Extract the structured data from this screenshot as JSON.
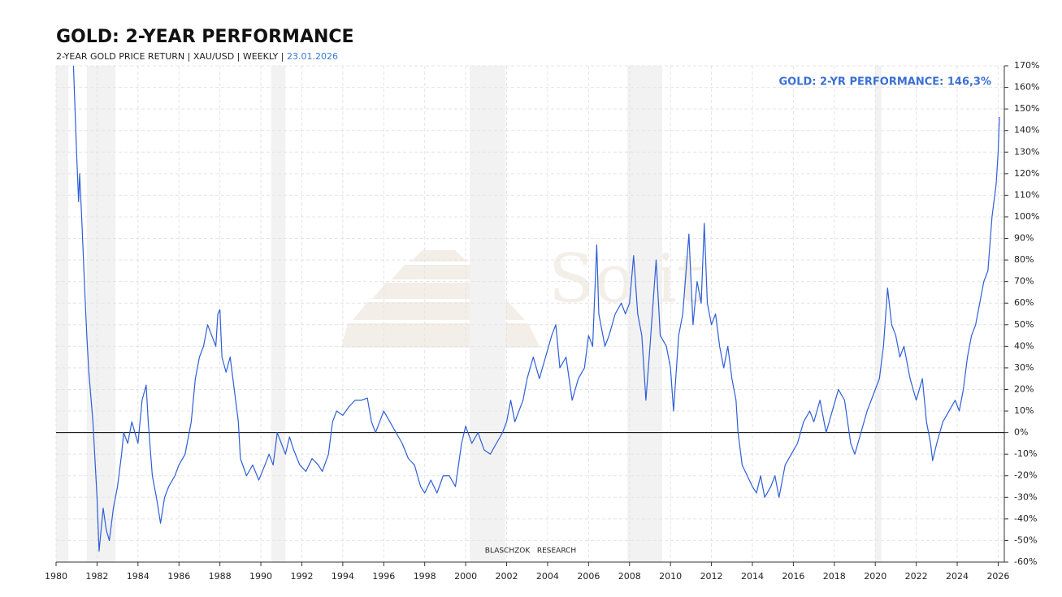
{
  "chart_data": {
    "type": "line",
    "title": "GOLD: 2-YEAR PERFORMANCE",
    "subtitle": "2-YEAR GOLD PRICE RETURN | XAU/USD | WEEKLY | ",
    "date": "23.01.2026",
    "annotation": "GOLD: 2-YR PERFORMANCE: 146,3%",
    "source": "BLASCHZOK   RESEARCH",
    "watermark": "Solit",
    "color": "#2e5fd6",
    "grid": true,
    "zero_line": true,
    "shaded_periods": [
      [
        1980.0,
        1980.6
      ],
      [
        1981.5,
        1982.9
      ],
      [
        1990.5,
        1991.2
      ],
      [
        2000.2,
        2001.95
      ],
      [
        2007.9,
        2009.6
      ],
      [
        2020.0,
        2020.3
      ]
    ],
    "xlim": [
      1980,
      2026.3
    ],
    "xticks": [
      1980,
      1982,
      1984,
      1986,
      1988,
      1990,
      1992,
      1994,
      1996,
      1998,
      2000,
      2002,
      2004,
      2006,
      2008,
      2010,
      2012,
      2014,
      2016,
      2018,
      2020,
      2022,
      2024,
      2026
    ],
    "ylim": [
      -60,
      170
    ],
    "yticks": [
      {
        "value": -60,
        "label": "-60%"
      },
      {
        "value": -50,
        "label": "-50%"
      },
      {
        "value": -40,
        "label": "-40%"
      },
      {
        "value": -30,
        "label": "-30%"
      },
      {
        "value": -20,
        "label": "-20%"
      },
      {
        "value": -10,
        "label": "-10%"
      },
      {
        "value": 0,
        "label": "0%"
      },
      {
        "value": 10,
        "label": "10%"
      },
      {
        "value": 20,
        "label": "20%"
      },
      {
        "value": 30,
        "label": "30%"
      },
      {
        "value": 40,
        "label": "40%"
      },
      {
        "value": 50,
        "label": "50%"
      },
      {
        "value": 60,
        "label": "60%"
      },
      {
        "value": 70,
        "label": "70%"
      },
      {
        "value": 80,
        "label": "80%"
      },
      {
        "value": 90,
        "label": "90%"
      },
      {
        "value": 100,
        "label": "100%"
      },
      {
        "value": 110,
        "label": "110%"
      },
      {
        "value": 120,
        "label": "120%"
      },
      {
        "value": 130,
        "label": "130%"
      },
      {
        "value": 140,
        "label": "140%"
      },
      {
        "value": 150,
        "label": "150%"
      },
      {
        "value": 160,
        "label": "160%"
      },
      {
        "value": 170,
        "label": "170%"
      }
    ],
    "x": [
      1980.85,
      1981.0,
      1981.1,
      1981.15,
      1981.25,
      1981.4,
      1981.5,
      1981.6,
      1981.8,
      1982.0,
      1982.1,
      1982.3,
      1982.45,
      1982.6,
      1982.8,
      1983.0,
      1983.2,
      1983.3,
      1983.5,
      1983.7,
      1984.0,
      1984.2,
      1984.4,
      1984.5,
      1984.7,
      1984.9,
      1985.1,
      1985.3,
      1985.5,
      1985.8,
      1986.0,
      1986.3,
      1986.6,
      1986.8,
      1987.0,
      1987.2,
      1987.4,
      1987.6,
      1987.8,
      1987.9,
      1988.0,
      1988.1,
      1988.3,
      1988.5,
      1988.7,
      1988.9,
      1989.0,
      1989.3,
      1989.6,
      1989.9,
      1990.2,
      1990.4,
      1990.6,
      1990.8,
      1991.0,
      1991.2,
      1991.4,
      1991.6,
      1991.9,
      1992.2,
      1992.5,
      1992.8,
      1993.0,
      1993.3,
      1993.5,
      1993.7,
      1994.0,
      1994.3,
      1994.6,
      1994.9,
      1995.2,
      1995.4,
      1995.6,
      1995.8,
      1996.0,
      1996.3,
      1996.6,
      1996.9,
      1997.2,
      1997.5,
      1997.8,
      1998.0,
      1998.3,
      1998.6,
      1998.9,
      1999.2,
      1999.5,
      1999.8,
      2000.0,
      2000.3,
      2000.6,
      2000.9,
      2001.2,
      2001.5,
      2001.8,
      2002.0,
      2002.2,
      2002.4,
      2002.6,
      2002.8,
      2003.0,
      2003.3,
      2003.6,
      2003.9,
      2004.2,
      2004.4,
      2004.6,
      2004.9,
      2005.2,
      2005.5,
      2005.8,
      2006.0,
      2006.2,
      2006.4,
      2006.5,
      2006.8,
      2007.0,
      2007.3,
      2007.6,
      2007.8,
      2008.0,
      2008.2,
      2008.4,
      2008.6,
      2008.8,
      2009.0,
      2009.3,
      2009.5,
      2009.8,
      2010.0,
      2010.15,
      2010.4,
      2010.6,
      2010.9,
      2011.1,
      2011.3,
      2011.5,
      2011.65,
      2011.8,
      2012.0,
      2012.2,
      2012.4,
      2012.6,
      2012.8,
      2013.0,
      2013.2,
      2013.3,
      2013.5,
      2014.0,
      2014.2,
      2014.4,
      2014.6,
      2014.9,
      2015.1,
      2015.3,
      2015.6,
      2015.9,
      2016.2,
      2016.5,
      2016.8,
      2017.0,
      2017.3,
      2017.6,
      2017.9,
      2018.2,
      2018.5,
      2018.8,
      2019.0,
      2019.3,
      2019.6,
      2019.8,
      2020.0,
      2020.2,
      2020.4,
      2020.6,
      2020.8,
      2021.0,
      2021.2,
      2021.4,
      2021.7,
      2022.0,
      2022.3,
      2022.5,
      2022.7,
      2022.8,
      2023.0,
      2023.3,
      2023.6,
      2023.9,
      2024.1,
      2024.3,
      2024.5,
      2024.7,
      2024.9,
      2025.1,
      2025.3,
      2025.5,
      2025.7,
      2025.9,
      2026.0,
      2026.06
    ],
    "values": [
      170,
      130,
      107,
      120,
      100,
      66,
      45,
      28,
      5,
      -30,
      -55,
      -35,
      -45,
      -50,
      -35,
      -25,
      -10,
      0,
      -5,
      5,
      -5,
      15,
      22,
      5,
      -20,
      -30,
      -42,
      -30,
      -25,
      -20,
      -15,
      -10,
      5,
      25,
      35,
      40,
      50,
      45,
      40,
      55,
      57,
      35,
      28,
      35,
      20,
      5,
      -12,
      -20,
      -15,
      -22,
      -15,
      -10,
      -15,
      0,
      -5,
      -10,
      -2,
      -8,
      -15,
      -18,
      -12,
      -15,
      -18,
      -10,
      5,
      10,
      8,
      12,
      15,
      15,
      16,
      5,
      0,
      5,
      10,
      5,
      0,
      -5,
      -12,
      -15,
      -25,
      -28,
      -22,
      -28,
      -20,
      -20,
      -25,
      -5,
      3,
      -5,
      0,
      -8,
      -10,
      -5,
      0,
      5,
      15,
      5,
      10,
      15,
      25,
      35,
      25,
      35,
      45,
      50,
      30,
      35,
      15,
      25,
      30,
      45,
      40,
      87,
      55,
      40,
      45,
      55,
      60,
      55,
      60,
      82,
      55,
      45,
      15,
      40,
      80,
      45,
      40,
      30,
      10,
      45,
      55,
      92,
      50,
      70,
      60,
      97,
      60,
      50,
      55,
      40,
      30,
      40,
      25,
      15,
      0,
      -15,
      -25,
      -28,
      -20,
      -30,
      -25,
      -20,
      -30,
      -15,
      -10,
      -5,
      5,
      10,
      5,
      15,
      0,
      10,
      20,
      15,
      -5,
      -10,
      0,
      10,
      15,
      20,
      25,
      40,
      67,
      50,
      45,
      35,
      40,
      25,
      15,
      25,
      5,
      -5,
      -13,
      -5,
      5,
      10,
      15,
      10,
      20,
      35,
      45,
      50,
      60,
      70,
      75,
      100,
      115,
      130,
      146.3
    ]
  }
}
